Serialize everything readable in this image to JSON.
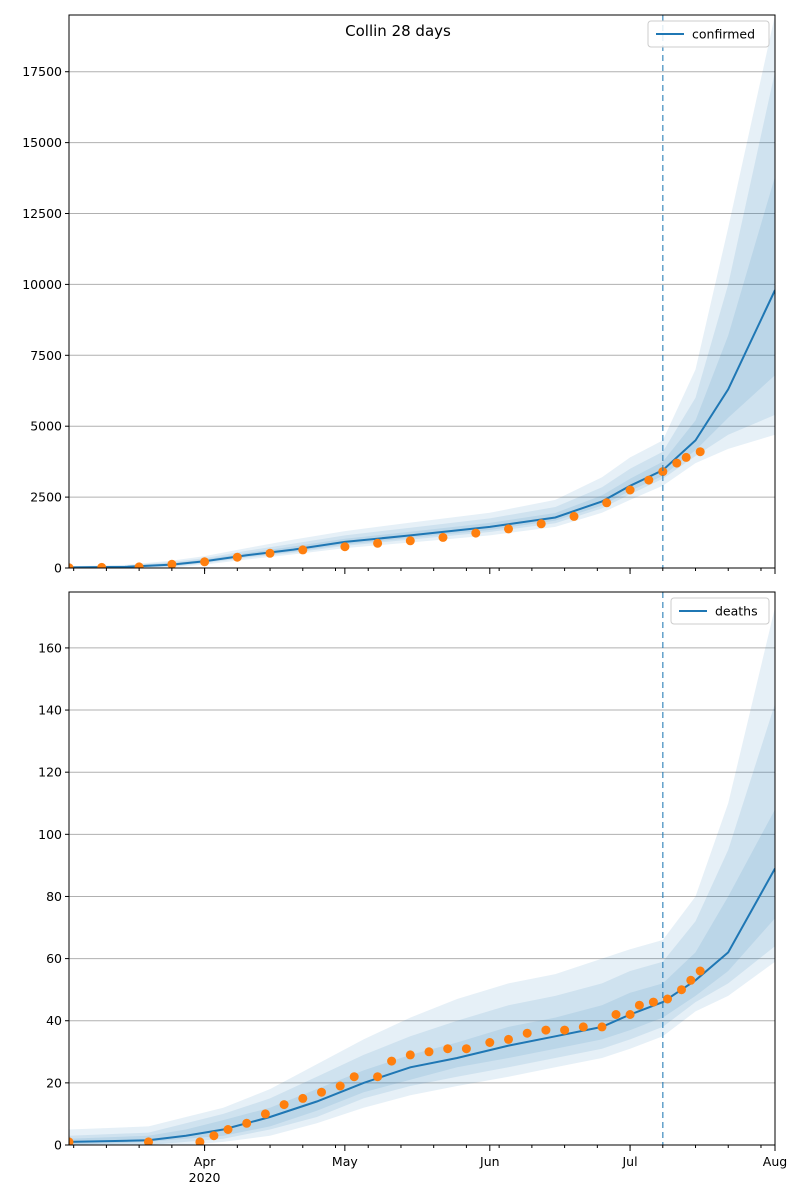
{
  "figure": {
    "title": "Collin 28 days",
    "x_tick_labels": [
      "Apr",
      "May",
      "Jun",
      "Jul",
      "Aug"
    ],
    "x_year_label": "2020",
    "colors": {
      "model": "#1f77b4",
      "observed": "#ff7f0e",
      "band": "#1f77b4",
      "grid": "#b0b0b0",
      "forecast_line": "#1f77b4"
    }
  },
  "chart_data": [
    {
      "type": "line",
      "name": "confirmed",
      "legend": "confirmed",
      "legend_position": "top-right",
      "x_range": [
        "2020-03-03",
        "2020-08-01"
      ],
      "ylim": [
        0,
        19500
      ],
      "y_ticks": [
        0,
        2500,
        5000,
        7500,
        10000,
        12500,
        15000,
        17500
      ],
      "grid": "y",
      "forecast_start": "2020-07-08",
      "model": {
        "x": [
          "2020-03-03",
          "2020-03-15",
          "2020-03-25",
          "2020-04-01",
          "2020-04-10",
          "2020-04-20",
          "2020-05-01",
          "2020-05-15",
          "2020-06-01",
          "2020-06-15",
          "2020-06-25",
          "2020-07-01",
          "2020-07-08",
          "2020-07-15",
          "2020-07-22",
          "2020-08-01"
        ],
        "y": [
          20,
          40,
          120,
          240,
          450,
          650,
          920,
          1150,
          1450,
          1780,
          2350,
          2900,
          3450,
          4500,
          6300,
          9800
        ]
      },
      "bands": [
        {
          "lo": [
            0,
            0,
            20,
            120,
            300,
            480,
            700,
            900,
            1150,
            1450,
            1950,
            2400,
            2900,
            3700,
            4200,
            4700
          ],
          "hi": [
            60,
            110,
            260,
            420,
            700,
            1000,
            1300,
            1600,
            1950,
            2400,
            3200,
            3900,
            4500,
            7000,
            12000,
            19500
          ]
        },
        {
          "lo": [
            0,
            10,
            50,
            170,
            360,
            540,
            780,
            1000,
            1270,
            1580,
            2100,
            2600,
            3150,
            3950,
            4700,
            5400
          ],
          "hi": [
            45,
            85,
            210,
            350,
            610,
            860,
            1150,
            1420,
            1750,
            2150,
            2850,
            3500,
            4100,
            6000,
            10000,
            17500
          ]
        },
        {
          "lo": [
            5,
            20,
            75,
            200,
            400,
            580,
            830,
            1060,
            1340,
            1670,
            2200,
            2720,
            3250,
            4150,
            5300,
            6800
          ],
          "hi": [
            35,
            65,
            170,
            300,
            530,
            760,
            1030,
            1280,
            1590,
            1940,
            2560,
            3150,
            3750,
            5200,
            8200,
            13800
          ]
        }
      ],
      "observed": {
        "x": [
          "2020-03-03",
          "2020-03-10",
          "2020-03-18",
          "2020-03-25",
          "2020-04-01",
          "2020-04-08",
          "2020-04-15",
          "2020-04-22",
          "2020-05-01",
          "2020-05-08",
          "2020-05-15",
          "2020-05-22",
          "2020-05-29",
          "2020-06-05",
          "2020-06-12",
          "2020-06-19",
          "2020-06-26",
          "2020-07-01",
          "2020-07-05",
          "2020-07-08",
          "2020-07-11",
          "2020-07-13",
          "2020-07-16"
        ],
        "y": [
          10,
          20,
          40,
          130,
          220,
          380,
          520,
          640,
          750,
          870,
          960,
          1080,
          1230,
          1380,
          1560,
          1820,
          2300,
          2750,
          3100,
          3400,
          3700,
          3900,
          4100
        ]
      }
    },
    {
      "type": "line",
      "name": "deaths",
      "legend": "deaths",
      "legend_position": "top-right",
      "x_range": [
        "2020-03-03",
        "2020-08-01"
      ],
      "ylim": [
        0,
        178
      ],
      "y_ticks": [
        0,
        20,
        40,
        60,
        80,
        100,
        120,
        140,
        160
      ],
      "grid": "y",
      "forecast_start": "2020-07-08",
      "model": {
        "x": [
          "2020-03-03",
          "2020-03-20",
          "2020-03-28",
          "2020-04-05",
          "2020-04-15",
          "2020-04-25",
          "2020-05-05",
          "2020-05-15",
          "2020-05-25",
          "2020-06-05",
          "2020-06-15",
          "2020-06-25",
          "2020-07-01",
          "2020-07-08",
          "2020-07-15",
          "2020-07-22",
          "2020-08-01"
        ],
        "y": [
          1,
          1.5,
          3,
          5,
          9,
          14,
          20,
          25,
          28,
          32,
          35,
          38,
          42,
          46,
          53,
          62,
          89
        ]
      },
      "bands": [
        {
          "lo": [
            0,
            0,
            0,
            1,
            3,
            7,
            12,
            16,
            19,
            22,
            25,
            28,
            31,
            35,
            43,
            48,
            59
          ],
          "hi": [
            5,
            6,
            9,
            12,
            18,
            26,
            34,
            41,
            47,
            52,
            55,
            60,
            63,
            66,
            80,
            110,
            173
          ]
        },
        {
          "lo": [
            0,
            0,
            1,
            2,
            5,
            9,
            15,
            19,
            22,
            25,
            28,
            31,
            34,
            38,
            46,
            52,
            64
          ],
          "hi": [
            3,
            4,
            7,
            10,
            15,
            22,
            29,
            35,
            40,
            45,
            48,
            52,
            56,
            59,
            72,
            95,
            142
          ]
        },
        {
          "lo": [
            0,
            1,
            2,
            3,
            6,
            11,
            17,
            21,
            25,
            28,
            31,
            34,
            37,
            41,
            48,
            56,
            73
          ],
          "hi": [
            2,
            3,
            5,
            8,
            12,
            18,
            24,
            29,
            33,
            38,
            41,
            45,
            49,
            52,
            62,
            80,
            108
          ]
        }
      ],
      "observed": {
        "x": [
          "2020-03-03",
          "2020-03-20",
          "2020-03-31",
          "2020-04-03",
          "2020-04-06",
          "2020-04-10",
          "2020-04-14",
          "2020-04-18",
          "2020-04-22",
          "2020-04-26",
          "2020-04-30",
          "2020-05-03",
          "2020-05-08",
          "2020-05-11",
          "2020-05-15",
          "2020-05-19",
          "2020-05-23",
          "2020-05-27",
          "2020-06-01",
          "2020-06-05",
          "2020-06-09",
          "2020-06-13",
          "2020-06-17",
          "2020-06-21",
          "2020-06-25",
          "2020-06-28",
          "2020-07-01",
          "2020-07-03",
          "2020-07-06",
          "2020-07-09",
          "2020-07-12",
          "2020-07-14",
          "2020-07-16"
        ],
        "y": [
          1,
          1,
          1,
          3,
          5,
          7,
          10,
          13,
          15,
          17,
          19,
          22,
          22,
          27,
          29,
          30,
          31,
          31,
          33,
          34,
          36,
          37,
          37,
          38,
          38,
          42,
          42,
          45,
          46,
          47,
          50,
          53,
          56
        ]
      }
    }
  ]
}
